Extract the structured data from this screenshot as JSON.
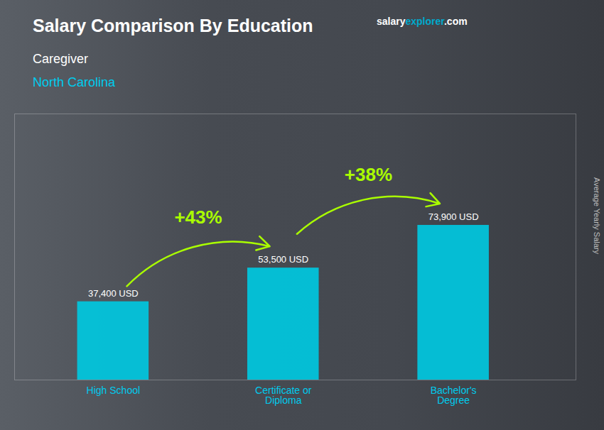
{
  "chart_data": {
    "type": "bar",
    "title": "Salary Comparison By Education",
    "subtitle": [
      "Caregiver",
      "North Carolina"
    ],
    "categories": [
      "High School",
      "Certificate or\nDiploma",
      "Bachelor's\nDegree"
    ],
    "values": [
      37400,
      53500,
      73900
    ],
    "value_labels": [
      "37,400 USD",
      "53,500 USD",
      "73,900 USD"
    ],
    "data_labels": true,
    "color": "#00c8e0",
    "ylabel": "Average Yearly Salary",
    "ylim": [
      0,
      127108
    ],
    "yticks": [],
    "tick_labels": "x",
    "grid": false,
    "annotations": [
      {
        "text": "+43%",
        "color": "#aaff00"
      },
      {
        "text": "+38%",
        "color": "#aaff00"
      }
    ],
    "watermark": [
      "salary",
      "explorer",
      ".com"
    ]
  }
}
